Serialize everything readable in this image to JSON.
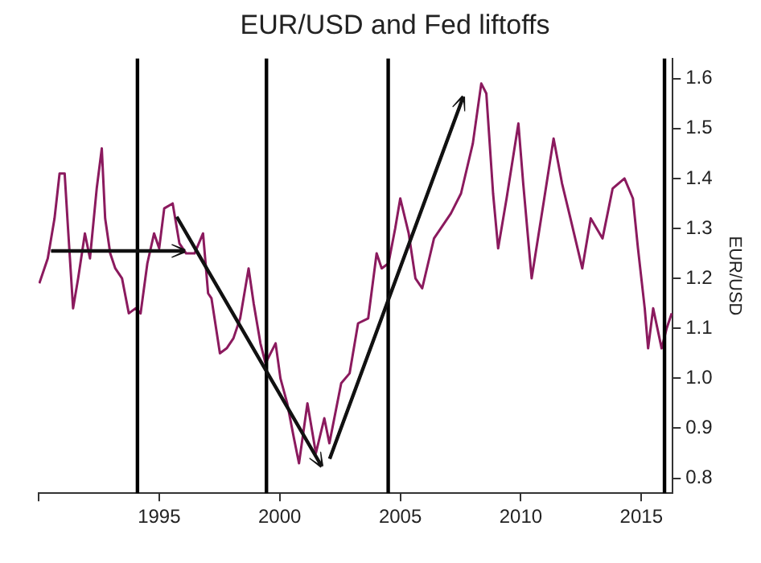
{
  "chart_data": {
    "type": "line",
    "title": "EUR/USD and Fed liftoffs",
    "y2label": "EUR/USD",
    "x": [
      1990.03,
      1990.38,
      1990.66,
      1990.87,
      1991.08,
      1991.22,
      1991.43,
      1991.64,
      1991.92,
      1992.13,
      1992.41,
      1992.62,
      1992.76,
      1992.97,
      1993.18,
      1993.46,
      1993.74,
      1994.02,
      1994.23,
      1994.51,
      1994.79,
      1995.0,
      1995.21,
      1995.56,
      1995.84,
      1996.12,
      1996.47,
      1996.82,
      1997.03,
      1997.17,
      1997.52,
      1997.8,
      1998.08,
      1998.36,
      1998.71,
      1998.92,
      1999.2,
      1999.41,
      1999.83,
      2000.03,
      2000.31,
      2000.59,
      2000.8,
      2001.15,
      2001.5,
      2001.85,
      2002.06,
      2002.55,
      2002.9,
      2003.25,
      2003.67,
      2004.02,
      2004.23,
      2004.51,
      2004.79,
      2005.0,
      2005.35,
      2005.63,
      2005.91,
      2006.4,
      2007.1,
      2007.52,
      2008.01,
      2008.36,
      2008.57,
      2008.85,
      2009.06,
      2009.41,
      2009.9,
      2010.1,
      2010.45,
      2010.94,
      2011.36,
      2011.71,
      2012.06,
      2012.55,
      2012.9,
      2013.39,
      2013.81,
      2014.3,
      2014.65,
      2014.86,
      2015.14,
      2015.28,
      2015.49,
      2015.84,
      2016.05,
      2016.26
    ],
    "series": [
      {
        "color": "#8b1a5e",
        "axis": "y2",
        "values": [
          1.19,
          1.24,
          1.32,
          1.41,
          1.41,
          1.3,
          1.14,
          1.2,
          1.29,
          1.24,
          1.38,
          1.46,
          1.32,
          1.25,
          1.22,
          1.2,
          1.13,
          1.14,
          1.13,
          1.23,
          1.29,
          1.26,
          1.34,
          1.35,
          1.27,
          1.25,
          1.25,
          1.29,
          1.17,
          1.16,
          1.05,
          1.06,
          1.08,
          1.12,
          1.22,
          1.15,
          1.07,
          1.03,
          1.07,
          1.0,
          0.95,
          0.88,
          0.83,
          0.95,
          0.85,
          0.92,
          0.87,
          0.99,
          1.01,
          1.11,
          1.12,
          1.25,
          1.22,
          1.23,
          1.3,
          1.36,
          1.29,
          1.2,
          1.18,
          1.28,
          1.33,
          1.37,
          1.47,
          1.59,
          1.57,
          1.37,
          1.26,
          1.36,
          1.51,
          1.39,
          1.2,
          1.35,
          1.48,
          1.39,
          1.32,
          1.22,
          1.32,
          1.28,
          1.38,
          1.4,
          1.36,
          1.26,
          1.14,
          1.06,
          1.14,
          1.06,
          1.1,
          1.13
        ]
      }
    ],
    "xlim": [
      1990,
      2016.3
    ],
    "xticks": [
      {
        "value": 1990,
        "label": null
      },
      1995,
      2000,
      2005,
      2010,
      2015
    ],
    "y2lim": [
      0.77,
      1.64
    ],
    "y2ticks": [
      0.8,
      0.9,
      {
        "value": 1.0,
        "label": "1.0"
      },
      1.1,
      1.2,
      1.3,
      1.4,
      1.5,
      1.6
    ],
    "ref_lines": [
      {
        "axis": "x",
        "value": 1994.1,
        "color": "#000000"
      },
      {
        "axis": "x",
        "value": 1999.45,
        "color": "#000000"
      },
      {
        "axis": "x",
        "value": 2004.5,
        "color": "#000000"
      },
      {
        "axis": "x",
        "value": 2015.96,
        "color": "#000000"
      }
    ],
    "grid": false,
    "legend": false,
    "marker": "none",
    "line_style": "solid"
  }
}
